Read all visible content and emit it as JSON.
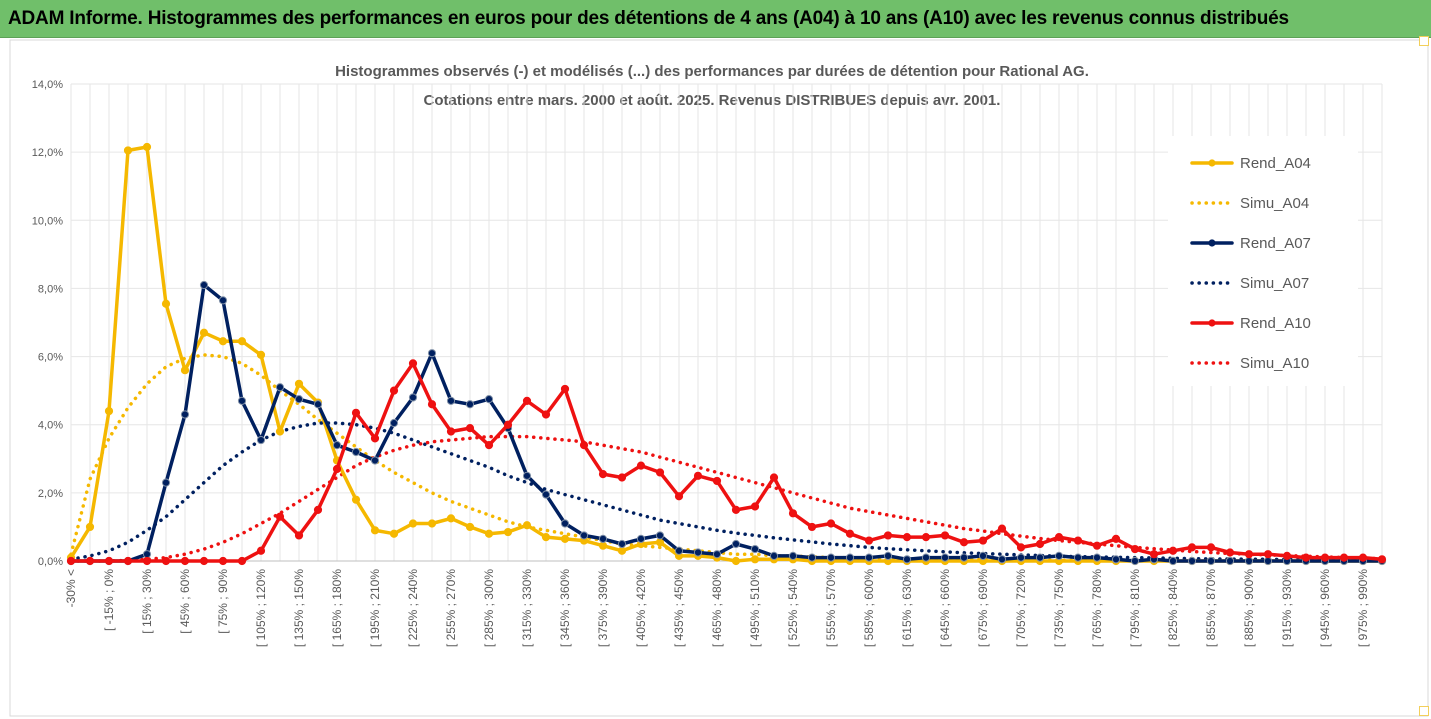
{
  "banner": {
    "title": "ADAM Informe. Histogrammes des performances en euros pour des détentions de 4 ans (A04) à 10 ans (A10) avec les revenus connus distribués"
  },
  "chart_data": {
    "type": "line",
    "title_line1": "Histogrammes observés (-) et modélisés (...)  des performances par durées de détention pour Rational AG.",
    "title_line2": "Cotations entre mars. 2000 et août. 2025. Revenus DISTRIBUES depuis avr. 2001.",
    "y_ticks": [
      "0,0%",
      "2,0%",
      "4,0%",
      "6,0%",
      "8,0%",
      "10,0%",
      "12,0%",
      "14,0%"
    ],
    "ylim": [
      0,
      14
    ],
    "x_labels": [
      "-30% <",
      "[ -15% ; 0%",
      "[ 15% ; 30%",
      "[ 45% ; 60%",
      "[ 75% ; 90%",
      "[ 105% ; 120%",
      "[ 135% ; 150%",
      "[ 165% ; 180%",
      "[ 195% ; 210%",
      "[ 225% ; 240%",
      "[ 255% ; 270%",
      "[ 285% ; 300%",
      "[ 315% ; 330%",
      "[ 345% ; 360%",
      "[ 375% ; 390%",
      "[ 405% ; 420%",
      "[ 435% ; 450%",
      "[ 465% ; 480%",
      "[ 495% ; 510%",
      "[ 525% ; 540%",
      "[ 555% ; 570%",
      "[ 585% ; 600%",
      "[ 615% ; 630%",
      "[ 645% ; 660%",
      "[ 675% ; 690%",
      "[ 705% ; 720%",
      "[ 735% ; 750%",
      "[ 765% ; 780%",
      "[ 795% ; 810%",
      "[ 825% ; 840%",
      "[ 855% ; 870%",
      "[ 885% ; 900%",
      "[ 915% ; 930%",
      "[ 945% ; 960%",
      "[ 975% ; 990%"
    ],
    "x_count": 70,
    "legend_position": "right",
    "series": [
      {
        "name": "Rend_A04",
        "color": "#f5b800",
        "style": "solid",
        "markers": true,
        "values": [
          0.1,
          1.0,
          4.4,
          12.05,
          12.15,
          7.55,
          5.6,
          6.7,
          6.45,
          6.45,
          6.05,
          3.8,
          5.2,
          4.65,
          2.95,
          1.8,
          0.9,
          0.8,
          1.1,
          1.1,
          1.25,
          1.0,
          0.8,
          0.85,
          1.05,
          0.7,
          0.65,
          0.6,
          0.45,
          0.3,
          0.5,
          0.55,
          0.15,
          0.15,
          0.1,
          0.0,
          0.05,
          0.05,
          0.05,
          0.0,
          0.0,
          0.0,
          0.0,
          0.0,
          0.0,
          0.0,
          0.0,
          0.0,
          0.0,
          0.0,
          0.0,
          0.0,
          0.0,
          0.0,
          0.0,
          0.0,
          0.0,
          0.0,
          0.0,
          0.0,
          0.0,
          0.0,
          0.0,
          0.0,
          0.0,
          0.0,
          0.0,
          0.0,
          0.0,
          0.0
        ]
      },
      {
        "name": "Simu_A04",
        "color": "#f5b800",
        "style": "dotted",
        "markers": false,
        "values": [
          0.2,
          2.4,
          3.6,
          4.5,
          5.2,
          5.7,
          5.95,
          6.05,
          6.0,
          5.8,
          5.45,
          5.0,
          4.6,
          4.15,
          3.75,
          3.35,
          2.95,
          2.6,
          2.3,
          2.0,
          1.75,
          1.55,
          1.35,
          1.15,
          1.0,
          0.9,
          0.8,
          0.7,
          0.6,
          0.5,
          0.45,
          0.4,
          0.35,
          0.3,
          0.25,
          0.2,
          0.2,
          0.15,
          0.15,
          0.12,
          0.1,
          0.1,
          0.08,
          0.07,
          0.06,
          0.05,
          0.05,
          0.04,
          0.04,
          0.03,
          0.03,
          0.03,
          0.02,
          0.02,
          0.02,
          0.02,
          0.01,
          0.01,
          0.01,
          0.01,
          0.01,
          0.01,
          0.01,
          0.01,
          0.01,
          0.01,
          0.01,
          0.01,
          0.01,
          0.01
        ]
      },
      {
        "name": "Rend_A07",
        "color": "#002060",
        "style": "solid",
        "markers": true,
        "values": [
          0.0,
          0.0,
          0.0,
          0.0,
          0.2,
          2.3,
          4.3,
          8.1,
          7.65,
          4.7,
          3.55,
          5.1,
          4.75,
          4.6,
          3.4,
          3.2,
          2.95,
          4.05,
          4.8,
          6.1,
          4.7,
          4.6,
          4.75,
          3.9,
          2.5,
          1.95,
          1.1,
          0.75,
          0.65,
          0.5,
          0.65,
          0.75,
          0.3,
          0.25,
          0.2,
          0.5,
          0.35,
          0.15,
          0.15,
          0.1,
          0.1,
          0.1,
          0.1,
          0.15,
          0.05,
          0.1,
          0.1,
          0.1,
          0.15,
          0.05,
          0.1,
          0.1,
          0.15,
          0.1,
          0.1,
          0.05,
          0.0,
          0.05,
          0.0,
          0.0,
          0.0,
          0.0,
          0.0,
          0.0,
          0.0,
          0.0,
          0.0,
          0.0,
          0.0,
          0.0
        ]
      },
      {
        "name": "Simu_A07",
        "color": "#002060",
        "style": "dotted",
        "markers": false,
        "values": [
          0.05,
          0.15,
          0.3,
          0.55,
          0.9,
          1.3,
          1.8,
          2.3,
          2.8,
          3.2,
          3.55,
          3.8,
          3.95,
          4.05,
          4.05,
          4.0,
          3.9,
          3.75,
          3.55,
          3.35,
          3.15,
          2.95,
          2.75,
          2.5,
          2.3,
          2.1,
          1.95,
          1.8,
          1.65,
          1.5,
          1.35,
          1.2,
          1.1,
          1.0,
          0.9,
          0.82,
          0.75,
          0.68,
          0.62,
          0.56,
          0.5,
          0.45,
          0.4,
          0.36,
          0.33,
          0.3,
          0.27,
          0.24,
          0.22,
          0.2,
          0.18,
          0.16,
          0.14,
          0.13,
          0.12,
          0.11,
          0.1,
          0.09,
          0.08,
          0.07,
          0.06,
          0.06,
          0.05,
          0.05,
          0.04,
          0.04,
          0.03,
          0.03,
          0.03,
          0.02
        ]
      },
      {
        "name": "Rend_A10",
        "color": "#ee1111",
        "style": "solid",
        "markers": true,
        "values": [
          0.0,
          0.0,
          0.0,
          0.0,
          0.0,
          0.0,
          0.0,
          0.0,
          0.0,
          0.0,
          0.3,
          1.3,
          0.75,
          1.5,
          2.7,
          4.35,
          3.6,
          5.0,
          5.8,
          4.6,
          3.8,
          3.9,
          3.4,
          4.0,
          4.7,
          4.3,
          5.05,
          3.4,
          2.55,
          2.45,
          2.8,
          2.6,
          1.9,
          2.5,
          2.35,
          1.5,
          1.6,
          2.45,
          1.4,
          1.0,
          1.1,
          0.8,
          0.6,
          0.75,
          0.7,
          0.7,
          0.75,
          0.55,
          0.6,
          0.95,
          0.4,
          0.5,
          0.7,
          0.6,
          0.45,
          0.65,
          0.35,
          0.2,
          0.3,
          0.4,
          0.4,
          0.25,
          0.2,
          0.2,
          0.15,
          0.1,
          0.1,
          0.1,
          0.1,
          0.05
        ]
      },
      {
        "name": "Simu_A10",
        "color": "#ee1111",
        "style": "dotted",
        "markers": false,
        "values": [
          0.0,
          0.0,
          0.0,
          0.02,
          0.05,
          0.1,
          0.2,
          0.35,
          0.55,
          0.8,
          1.1,
          1.4,
          1.75,
          2.1,
          2.45,
          2.8,
          3.05,
          3.25,
          3.4,
          3.5,
          3.55,
          3.6,
          3.65,
          3.65,
          3.65,
          3.6,
          3.55,
          3.5,
          3.4,
          3.3,
          3.2,
          3.05,
          2.9,
          2.75,
          2.6,
          2.45,
          2.3,
          2.15,
          2.0,
          1.85,
          1.7,
          1.55,
          1.45,
          1.35,
          1.25,
          1.15,
          1.05,
          0.95,
          0.88,
          0.8,
          0.73,
          0.66,
          0.6,
          0.55,
          0.5,
          0.45,
          0.4,
          0.36,
          0.32,
          0.28,
          0.25,
          0.22,
          0.2,
          0.18,
          0.16,
          0.14,
          0.12,
          0.1,
          0.08,
          0.07
        ]
      }
    ]
  }
}
